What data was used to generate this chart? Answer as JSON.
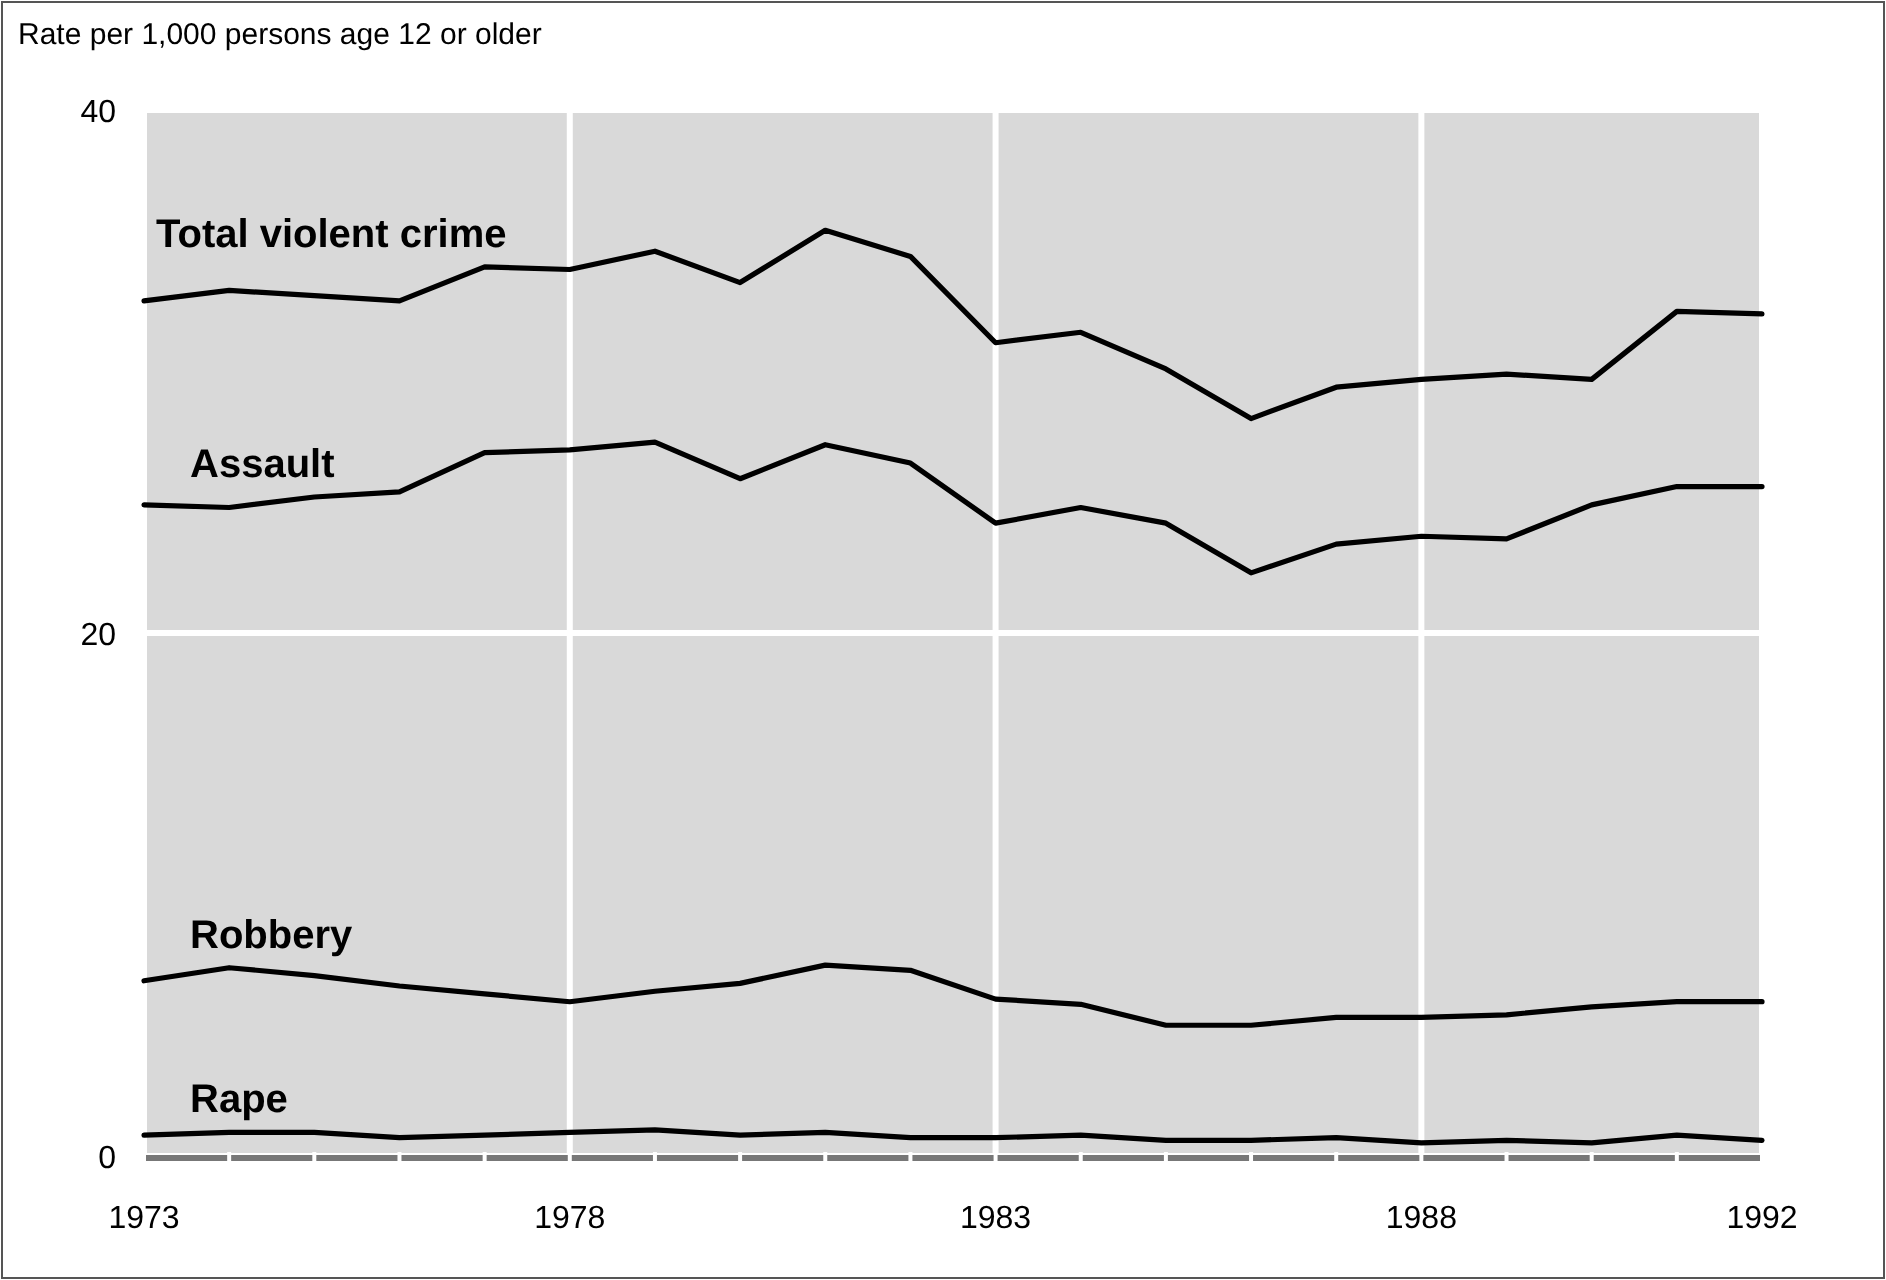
{
  "chart_data": {
    "type": "line",
    "ylabel": "Rate per 1,000 persons age 12 or older",
    "x": [
      1973,
      1974,
      1975,
      1976,
      1977,
      1978,
      1979,
      1980,
      1981,
      1982,
      1983,
      1984,
      1985,
      1986,
      1987,
      1988,
      1989,
      1990,
      1991,
      1992
    ],
    "series": [
      {
        "name": "Total violent crime",
        "color": "#000000",
        "values": [
          32.7,
          33.1,
          32.9,
          32.7,
          34.0,
          33.9,
          34.6,
          33.4,
          35.4,
          34.4,
          31.1,
          31.5,
          30.1,
          28.2,
          29.4,
          29.7,
          29.9,
          29.7,
          32.3,
          32.2
        ]
      },
      {
        "name": "Assault",
        "color": "#000000",
        "values": [
          24.9,
          24.8,
          25.2,
          25.4,
          26.9,
          27.0,
          27.3,
          25.9,
          27.2,
          26.5,
          24.2,
          24.8,
          24.2,
          22.3,
          23.4,
          23.7,
          23.6,
          24.9,
          25.6,
          25.6
        ]
      },
      {
        "name": "Robbery",
        "color": "#000000",
        "values": [
          6.7,
          7.2,
          6.9,
          6.5,
          6.2,
          5.9,
          6.3,
          6.6,
          7.3,
          7.1,
          6.0,
          5.8,
          5.0,
          5.0,
          5.3,
          5.3,
          5.4,
          5.7,
          5.9,
          5.9
        ]
      },
      {
        "name": "Rape",
        "color": "#000000",
        "values": [
          0.8,
          0.9,
          0.9,
          0.7,
          0.8,
          0.9,
          1.0,
          0.8,
          0.9,
          0.7,
          0.7,
          0.8,
          0.6,
          0.6,
          0.7,
          0.5,
          0.6,
          0.5,
          0.8,
          0.6
        ]
      }
    ],
    "xlim": [
      1973,
      1992
    ],
    "xticks": [
      1973,
      {
        "value": 1974,
        "label": null
      },
      {
        "value": 1975,
        "label": null
      },
      {
        "value": 1976,
        "label": null
      },
      {
        "value": 1977,
        "label": null
      },
      1978,
      {
        "value": 1979,
        "label": null
      },
      {
        "value": 1980,
        "label": null
      },
      {
        "value": 1981,
        "label": null
      },
      {
        "value": 1982,
        "label": null
      },
      1983,
      {
        "value": 1984,
        "label": null
      },
      {
        "value": 1985,
        "label": null
      },
      {
        "value": 1986,
        "label": null
      },
      {
        "value": 1987,
        "label": null
      },
      1988,
      {
        "value": 1989,
        "label": null
      },
      {
        "value": 1990,
        "label": null
      },
      {
        "value": 1991,
        "label": null
      },
      1992
    ],
    "ylim": [
      0,
      40
    ],
    "yticks": [
      0,
      20,
      40
    ],
    "grid": true,
    "marker": "none",
    "line_style": "solid"
  }
}
